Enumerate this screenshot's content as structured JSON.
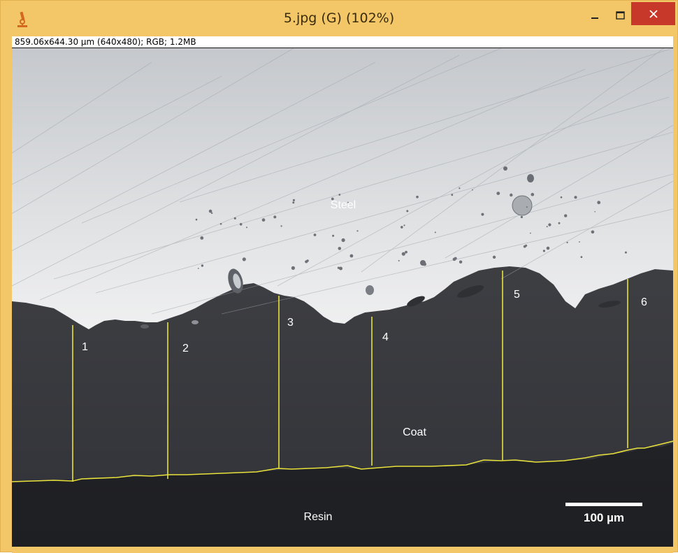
{
  "window": {
    "title": "5.jpg (G) (102%)",
    "app_icon": "microscope-icon",
    "controls": {
      "minimize_icon": "minimize-icon",
      "maximize_icon": "maximize-icon",
      "close_icon": "close-icon"
    },
    "frame_color": "#f3c768",
    "close_color": "#c7372a"
  },
  "info_bar": {
    "text": "859.06x644.30 µm (640x480); RGB; 1.2MB"
  },
  "image": {
    "regions": {
      "steel": "Steel",
      "coat": "Coat",
      "resin": "Resin"
    },
    "measurements": [
      {
        "label": "1"
      },
      {
        "label": "2"
      },
      {
        "label": "3"
      },
      {
        "label": "4"
      },
      {
        "label": "5"
      },
      {
        "label": "6"
      }
    ],
    "scale_bar": {
      "label": "100 µm"
    },
    "line_color": "#e8e23a"
  }
}
